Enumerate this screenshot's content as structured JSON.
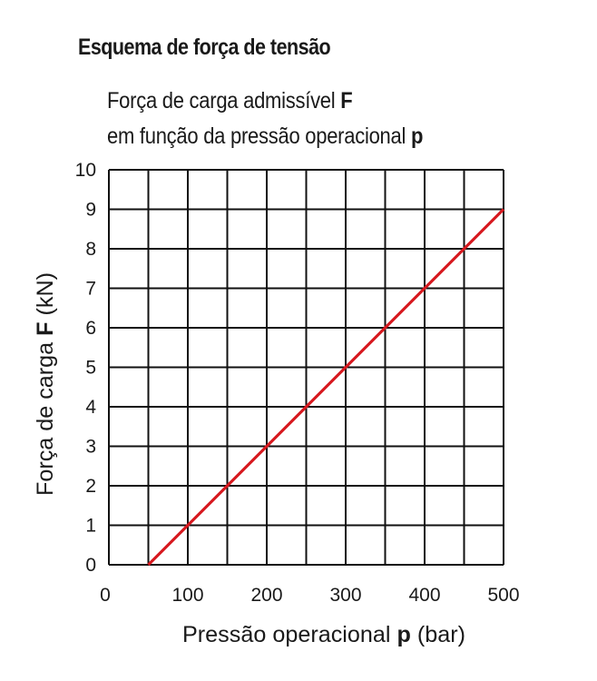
{
  "heading": "Esquema de força de tensão",
  "chart_data": {
    "type": "line",
    "title_line1": "Força de carga admissível",
    "title_line1_symbol": "F",
    "title_line2": "em função da pressão operacional",
    "title_line2_symbol": "p",
    "xlabel": "Pressão operacional",
    "xlabel_symbol": "p",
    "xlabel_unit": "(bar)",
    "ylabel": "Força de carga",
    "ylabel_symbol": "F",
    "ylabel_unit": "(kN)",
    "xlim": [
      0,
      500
    ],
    "ylim": [
      0,
      10
    ],
    "x_ticks": [
      0,
      100,
      200,
      300,
      400,
      500
    ],
    "y_ticks": [
      0,
      1,
      2,
      3,
      4,
      5,
      6,
      7,
      8,
      9,
      10
    ],
    "grid": true,
    "series": [
      {
        "color": "#d7191f",
        "x": [
          50,
          500
        ],
        "y": [
          0,
          9
        ]
      }
    ]
  }
}
